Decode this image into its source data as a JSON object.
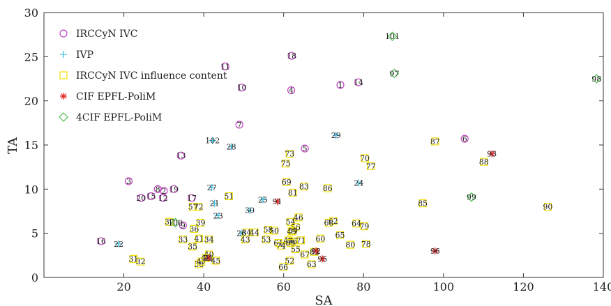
{
  "chart_data": {
    "type": "scatter",
    "xlabel": "SA",
    "ylabel": "TA",
    "xlim": [
      0,
      140
    ],
    "ylim": [
      0,
      30
    ],
    "xticks": [
      20,
      40,
      60,
      80,
      100,
      120,
      140
    ],
    "yticks": [
      0,
      5,
      10,
      15,
      20,
      25,
      30
    ],
    "legend_position": "top-left",
    "series": [
      {
        "name": "IRCCyN IVC",
        "marker": "circle",
        "color": "#c040c0",
        "points": [
          {
            "label": "1",
            "x": 74.2,
            "y": 21.8
          },
          {
            "label": "2",
            "x": 30.0,
            "y": 9.8
          },
          {
            "label": "3",
            "x": 21.2,
            "y": 10.9
          },
          {
            "label": "4",
            "x": 61.9,
            "y": 21.2
          },
          {
            "label": "5",
            "x": 65.3,
            "y": 14.6
          },
          {
            "label": "6",
            "x": 105.3,
            "y": 15.7
          },
          {
            "label": "7",
            "x": 48.9,
            "y": 17.3
          },
          {
            "label": "8",
            "x": 28.5,
            "y": 10.0
          },
          {
            "label": "9",
            "x": 34.8,
            "y": 5.9
          },
          {
            "label": "10",
            "x": 49.5,
            "y": 21.5
          },
          {
            "label": "11",
            "x": 45.4,
            "y": 23.9
          },
          {
            "label": "12",
            "x": 29.8,
            "y": 9.0
          },
          {
            "label": "13",
            "x": 34.3,
            "y": 13.8
          },
          {
            "label": "14",
            "x": 78.7,
            "y": 22.1
          },
          {
            "label": "15",
            "x": 26.8,
            "y": 9.2
          },
          {
            "label": "16",
            "x": 14.3,
            "y": 4.1
          },
          {
            "label": "17",
            "x": 37.0,
            "y": 9.0
          },
          {
            "label": "18",
            "x": 62.0,
            "y": 25.1
          },
          {
            "label": "19",
            "x": 32.5,
            "y": 10.0
          },
          {
            "label": "20",
            "x": 24.3,
            "y": 9.0
          }
        ]
      },
      {
        "name": "IVP",
        "marker": "plus",
        "color": "#40c0e0",
        "points": [
          {
            "label": "21",
            "x": 42.7,
            "y": 8.4
          },
          {
            "label": "22",
            "x": 18.7,
            "y": 3.8
          },
          {
            "label": "23",
            "x": 43.6,
            "y": 7.0
          },
          {
            "label": "24",
            "x": 78.8,
            "y": 10.7
          },
          {
            "label": "25",
            "x": 54.8,
            "y": 8.8
          },
          {
            "label": "26",
            "x": 49.4,
            "y": 5.0
          },
          {
            "label": "27",
            "x": 42.0,
            "y": 10.2
          },
          {
            "label": "28",
            "x": 46.9,
            "y": 14.8
          },
          {
            "label": "29",
            "x": 73.1,
            "y": 16.1
          },
          {
            "label": "30",
            "x": 51.5,
            "y": 7.6
          },
          {
            "label": "102",
            "x": 42.2,
            "y": 15.5
          }
        ]
      },
      {
        "name": "IRCCyN IVC influence content",
        "marker": "square",
        "color": "#f0e000",
        "points": [
          {
            "label": "31",
            "x": 22.4,
            "y": 2.1
          },
          {
            "label": "32",
            "x": 24.2,
            "y": 1.8
          },
          {
            "label": "33",
            "x": 34.8,
            "y": 4.3
          },
          {
            "label": "34",
            "x": 41.3,
            "y": 4.3
          },
          {
            "label": "35",
            "x": 37.2,
            "y": 3.5
          },
          {
            "label": "36",
            "x": 37.6,
            "y": 5.5
          },
          {
            "label": "37",
            "x": 31.4,
            "y": 6.3
          },
          {
            "label": "38",
            "x": 38.8,
            "y": 1.5
          },
          {
            "label": "39",
            "x": 39.2,
            "y": 6.2
          },
          {
            "label": "40",
            "x": 41.3,
            "y": 2.6
          },
          {
            "label": "41",
            "x": 38.8,
            "y": 4.4
          },
          {
            "label": "42",
            "x": 40.5,
            "y": 2.2
          },
          {
            "label": "43",
            "x": 50.4,
            "y": 4.3
          },
          {
            "label": "44",
            "x": 52.7,
            "y": 5.1
          },
          {
            "label": "45",
            "x": 43.0,
            "y": 1.9
          },
          {
            "label": "46",
            "x": 63.7,
            "y": 6.8
          },
          {
            "label": "47",
            "x": 39.4,
            "y": 1.8
          },
          {
            "label": "48",
            "x": 61.2,
            "y": 4.2
          },
          {
            "label": "49",
            "x": 62.0,
            "y": 5.2
          },
          {
            "label": "50",
            "x": 57.6,
            "y": 5.3
          },
          {
            "label": "51",
            "x": 46.3,
            "y": 9.2
          },
          {
            "label": "52",
            "x": 61.5,
            "y": 1.9
          },
          {
            "label": "53",
            "x": 55.6,
            "y": 4.3
          },
          {
            "label": "54",
            "x": 61.7,
            "y": 6.3
          },
          {
            "label": "55",
            "x": 63.0,
            "y": 3.2
          },
          {
            "label": "56",
            "x": 63.0,
            "y": 5.7
          },
          {
            "label": "57",
            "x": 37.3,
            "y": 8.0
          },
          {
            "label": "58",
            "x": 56.1,
            "y": 5.4
          },
          {
            "label": "59",
            "x": 62.3,
            "y": 5.3
          },
          {
            "label": "60",
            "x": 69.2,
            "y": 4.4
          },
          {
            "label": "61",
            "x": 58.7,
            "y": 3.9
          },
          {
            "label": "62",
            "x": 72.4,
            "y": 6.4
          },
          {
            "label": "63",
            "x": 67.0,
            "y": 1.5
          },
          {
            "label": "64",
            "x": 78.2,
            "y": 6.1
          },
          {
            "label": "65",
            "x": 74.1,
            "y": 4.8
          },
          {
            "label": "66",
            "x": 59.9,
            "y": 1.2
          },
          {
            "label": "67",
            "x": 65.3,
            "y": 2.6
          },
          {
            "label": "68",
            "x": 71.3,
            "y": 6.2
          },
          {
            "label": "69",
            "x": 60.7,
            "y": 10.8
          },
          {
            "label": "70",
            "x": 80.3,
            "y": 13.5
          },
          {
            "label": "71",
            "x": 64.3,
            "y": 4.2
          },
          {
            "label": "72",
            "x": 38.7,
            "y": 8.0
          },
          {
            "label": "73",
            "x": 61.5,
            "y": 14.0
          },
          {
            "label": "74",
            "x": 59.3,
            "y": 3.6
          },
          {
            "label": "75",
            "x": 60.5,
            "y": 12.9
          },
          {
            "label": "76",
            "x": 62.2,
            "y": 4.1
          },
          {
            "label": "77",
            "x": 81.8,
            "y": 12.6
          },
          {
            "label": "78",
            "x": 80.6,
            "y": 3.8
          },
          {
            "label": "79",
            "x": 80.2,
            "y": 5.8
          },
          {
            "label": "80",
            "x": 76.7,
            "y": 3.7
          },
          {
            "label": "81",
            "x": 62.3,
            "y": 9.6
          },
          {
            "label": "82",
            "x": 67.7,
            "y": 2.9
          },
          {
            "label": "83",
            "x": 65.1,
            "y": 10.3
          },
          {
            "label": "84",
            "x": 50.7,
            "y": 5.1
          },
          {
            "label": "85",
            "x": 94.8,
            "y": 8.4
          },
          {
            "label": "86",
            "x": 71.0,
            "y": 10.1
          },
          {
            "label": "87",
            "x": 97.9,
            "y": 15.4
          },
          {
            "label": "88",
            "x": 110.1,
            "y": 13.1
          },
          {
            "label": "89",
            "x": 61.7,
            "y": 3.9
          },
          {
            "label": "90",
            "x": 126.1,
            "y": 8.0
          }
        ]
      },
      {
        "name": "CIF EPFL-PoliM",
        "marker": "asterisk",
        "color": "#e02020",
        "points": [
          {
            "label": "91",
            "x": 58.4,
            "y": 8.6
          },
          {
            "label": "92",
            "x": 68.1,
            "y": 3.0
          },
          {
            "label": "93",
            "x": 112.1,
            "y": 14.0
          },
          {
            "label": "94",
            "x": 41.1,
            "y": 2.2
          },
          {
            "label": "95",
            "x": 69.7,
            "y": 2.1
          },
          {
            "label": "96",
            "x": 97.9,
            "y": 3.0
          }
        ]
      },
      {
        "name": "4CIF EPFL-PoliM",
        "marker": "diamond",
        "color": "#50c050",
        "points": [
          {
            "label": "97",
            "x": 87.7,
            "y": 23.1
          },
          {
            "label": "98",
            "x": 138.3,
            "y": 22.5
          },
          {
            "label": "99",
            "x": 107.0,
            "y": 9.1
          },
          {
            "label": "100",
            "x": 32.9,
            "y": 6.2
          },
          {
            "label": "101",
            "x": 87.2,
            "y": 27.3
          }
        ]
      }
    ]
  }
}
